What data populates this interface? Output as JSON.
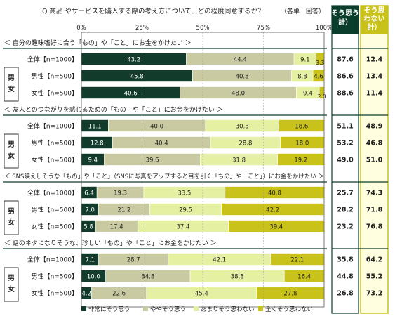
{
  "chart_data": {
    "type": "bar",
    "orientation": "horizontal",
    "stacked": true,
    "title": "Q.商品 やサービスを購入する際の考え方について、どの程度同意するか？",
    "note": "（各単一回答）",
    "xlim": [
      0,
      100
    ],
    "x_ticks": [
      "0%",
      "25%",
      "50%",
      "75%",
      "100%"
    ],
    "summary_headers": [
      "そう思う計）",
      "そう思わない計）"
    ],
    "summary_header_lines": [
      [
        "そう思う",
        "計）"
      ],
      [
        "そう思",
        "わない",
        "計）"
      ]
    ],
    "gender_label": [
      "男",
      "女"
    ],
    "series": [
      {
        "name": "非常にそう思う",
        "color": "#123b2c"
      },
      {
        "name": "ややそう思う",
        "color": "#c9c9a2"
      },
      {
        "name": "あまりそう思わない",
        "color": "#e6f0a2"
      },
      {
        "name": "全くそう思わない",
        "color": "#c8c21b"
      }
    ],
    "groups": [
      {
        "title": "＜ 自分の趣味嗜好に合う「もの」や「こと」にお金をかけたい ＞",
        "rows": [
          {
            "label": "全体【n=1000】",
            "values": [
              43.2,
              44.4,
              9.1,
              3.3
            ],
            "labels": [
              "43.2",
              "44.4",
              "9.1",
              "3.3"
            ],
            "agree": "87.6",
            "disagree": "12.4"
          },
          {
            "label": "男性【n=500】",
            "values": [
              45.8,
              40.8,
              8.8,
              4.6
            ],
            "labels": [
              "45.8",
              "40.8",
              "8.8",
              "4.6"
            ],
            "agree": "86.6",
            "disagree": "13.4"
          },
          {
            "label": "女性【n=500】",
            "values": [
              40.6,
              48.0,
              9.4,
              2.0
            ],
            "labels": [
              "40.6",
              "48.0",
              "9.4",
              "2.0"
            ],
            "agree": "88.6",
            "disagree": "11.4"
          }
        ]
      },
      {
        "title": "＜ 友人とのつながりを感じるための「もの」や「こと」にお金をかけたい ＞",
        "rows": [
          {
            "label": "全体【n=1000】",
            "values": [
              11.1,
              40.0,
              30.3,
              18.6
            ],
            "labels": [
              "11.1",
              "40.0",
              "30.3",
              "18.6"
            ],
            "agree": "51.1",
            "disagree": "48.9"
          },
          {
            "label": "男性【n=500】",
            "values": [
              12.8,
              40.4,
              28.8,
              18.0
            ],
            "labels": [
              "12.8",
              "40.4",
              "28.8",
              "18.0"
            ],
            "agree": "53.2",
            "disagree": "46.8"
          },
          {
            "label": "女性【n=500】",
            "values": [
              9.4,
              39.6,
              31.8,
              19.2
            ],
            "labels": [
              "9.4",
              "39.6",
              "31.8",
              "19.2"
            ],
            "agree": "49.0",
            "disagree": "51.0"
          }
        ]
      },
      {
        "title": "＜ SNS映えしそうな「もの」や「こと」（SNSに写真をアップすると目を引く「もの」や「こと」）にお金をかけたい ＞",
        "rows": [
          {
            "label": "全体【n=1000】",
            "values": [
              6.4,
              19.3,
              33.5,
              40.8
            ],
            "labels": [
              "6.4",
              "19.3",
              "33.5",
              "40.8"
            ],
            "agree": "25.7",
            "disagree": "74.3"
          },
          {
            "label": "男性【n=500】",
            "values": [
              7.0,
              21.2,
              29.5,
              42.2
            ],
            "labels": [
              "7.0",
              "21.2",
              "29.5",
              "42.2"
            ],
            "agree": "28.2",
            "disagree": "71.8"
          },
          {
            "label": "女性【n=500】",
            "values": [
              5.8,
              17.4,
              37.4,
              39.4
            ],
            "labels": [
              "5.8",
              "17.4",
              "37.4",
              "39.4"
            ],
            "agree": "23.2",
            "disagree": "76.8"
          }
        ]
      },
      {
        "title": "＜ 話のネタになりそうな、珍しい「もの」や「こと」にお金をかけたい ＞",
        "rows": [
          {
            "label": "全体【n=1000】",
            "values": [
              7.1,
              28.7,
              42.1,
              22.1
            ],
            "labels": [
              "7.1",
              "28.7",
              "42.1",
              "22.1"
            ],
            "agree": "35.8",
            "disagree": "64.2"
          },
          {
            "label": "男性【n=500】",
            "values": [
              10.0,
              34.8,
              38.8,
              16.4
            ],
            "labels": [
              "10.0",
              "34.8",
              "38.8",
              "16.4"
            ],
            "agree": "44.8",
            "disagree": "55.2"
          },
          {
            "label": "女性【n=500】",
            "values": [
              4.2,
              22.6,
              45.4,
              27.8
            ],
            "labels": [
              "4.2",
              "22.6",
              "45.4",
              "27.8"
            ],
            "agree": "26.8",
            "disagree": "73.2"
          }
        ]
      }
    ]
  }
}
